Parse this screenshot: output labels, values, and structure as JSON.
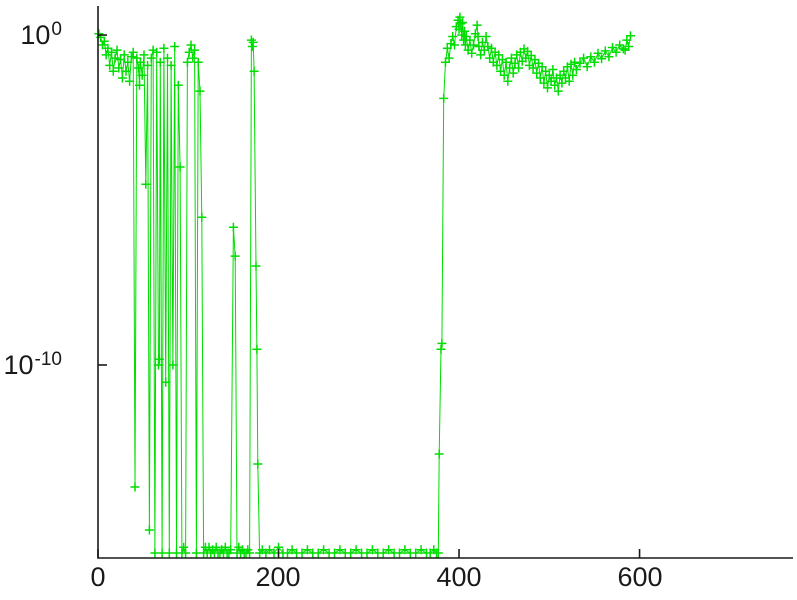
{
  "figure": {
    "background": "#ffffff",
    "axis_color": "#1a1a1a",
    "series_color": "#00dd00"
  },
  "chart_data": {
    "type": "line",
    "marker": "+",
    "title": "",
    "xlabel": "",
    "ylabel": "",
    "yscale": "log",
    "grid": false,
    "legend": null,
    "xlim": [
      0,
      770
    ],
    "ylim_exp": [
      -15.85,
      0.88
    ],
    "x_ticks": [
      0,
      200,
      400,
      600
    ],
    "x_tick_labels": [
      "0",
      "200",
      "400",
      "600"
    ],
    "y_ticks": [
      1,
      1e-10
    ],
    "y_tick_base": "10",
    "y_tick_exp_labels": [
      "0",
      "-10"
    ],
    "points": [
      [
        1,
        1.1
      ],
      [
        3,
        0.85
      ],
      [
        5,
        0.5
      ],
      [
        7,
        0.65
      ],
      [
        9,
        0.25
      ],
      [
        11,
        0.4
      ],
      [
        13,
        0.12
      ],
      [
        15,
        0.3
      ],
      [
        17,
        0.08
      ],
      [
        19,
        0.2
      ],
      [
        21,
        0.35
      ],
      [
        23,
        0.1
      ],
      [
        25,
        0.18
      ],
      [
        27,
        0.05
      ],
      [
        29,
        0.25
      ],
      [
        31,
        0.08
      ],
      [
        33,
        0.15
      ],
      [
        35,
        0.04
      ],
      [
        37,
        0.22
      ],
      [
        39,
        0.3
      ],
      [
        41,
        2e-14
      ],
      [
        43,
        0.2
      ],
      [
        45,
        0.1
      ],
      [
        46,
        0.03
      ],
      [
        47,
        0.15
      ],
      [
        49,
        0.06
      ],
      [
        51,
        0.25
      ],
      [
        53,
        3e-05
      ],
      [
        55,
        0.12
      ],
      [
        57,
        1e-15
      ],
      [
        59,
        0.2
      ],
      [
        61,
        0.35
      ],
      [
        63,
        2e-16
      ],
      [
        65,
        0.3
      ],
      [
        67,
        1e-10
      ],
      [
        68,
        1.5e-10
      ],
      [
        69,
        0.15
      ],
      [
        71,
        2e-16
      ],
      [
        73,
        0.4
      ],
      [
        75,
        3e-11
      ],
      [
        77,
        0.2
      ],
      [
        79,
        2e-16
      ],
      [
        81,
        0.12
      ],
      [
        83,
        1e-10
      ],
      [
        85,
        0.45
      ],
      [
        87,
        2e-16
      ],
      [
        89,
        0.03
      ],
      [
        91,
        0.0001
      ],
      [
        93,
        2e-16
      ],
      [
        95,
        3e-16
      ],
      [
        97,
        2e-16
      ],
      [
        99,
        0.15
      ],
      [
        101,
        0.3
      ],
      [
        103,
        0.5
      ],
      [
        105,
        0.2
      ],
      [
        107,
        0.35
      ],
      [
        109,
        2e-16
      ],
      [
        111,
        0.15
      ],
      [
        113,
        0.02
      ],
      [
        115,
        3e-06
      ],
      [
        117,
        2e-16
      ],
      [
        119,
        3e-16
      ],
      [
        121,
        2e-16
      ],
      [
        123,
        3e-16
      ],
      [
        125,
        2e-16
      ],
      [
        127,
        2.5e-16
      ],
      [
        129,
        2e-16
      ],
      [
        131,
        3e-16
      ],
      [
        133,
        2e-16
      ],
      [
        135,
        2e-16
      ],
      [
        137,
        2.5e-16
      ],
      [
        139,
        2e-16
      ],
      [
        141,
        3e-16
      ],
      [
        143,
        2e-16
      ],
      [
        145,
        2e-16
      ],
      [
        147,
        2.5e-16
      ],
      [
        150,
        1.5e-06
      ],
      [
        152,
        2e-07
      ],
      [
        154,
        2e-16
      ],
      [
        156,
        3e-16
      ],
      [
        158,
        2e-16
      ],
      [
        160,
        2.5e-16
      ],
      [
        162,
        2e-16
      ],
      [
        164,
        2e-16
      ],
      [
        166,
        2.5e-16
      ],
      [
        168,
        2e-16
      ],
      [
        170,
        0.7
      ],
      [
        171,
        0.45
      ],
      [
        172,
        0.6
      ],
      [
        173,
        0.08
      ],
      [
        175,
        1e-07
      ],
      [
        176,
        3e-10
      ],
      [
        177,
        1e-13
      ],
      [
        179,
        2e-16
      ],
      [
        182,
        2.5e-16
      ],
      [
        186,
        2e-16
      ],
      [
        190,
        2.5e-16
      ],
      [
        195,
        2e-16
      ],
      [
        200,
        3e-16
      ],
      [
        205,
        2e-16
      ],
      [
        210,
        2e-16
      ],
      [
        215,
        2.5e-16
      ],
      [
        220,
        2e-16
      ],
      [
        226,
        2e-16
      ],
      [
        232,
        2.5e-16
      ],
      [
        238,
        2e-16
      ],
      [
        244,
        2e-16
      ],
      [
        250,
        2.5e-16
      ],
      [
        256,
        2e-16
      ],
      [
        262,
        2e-16
      ],
      [
        268,
        2.5e-16
      ],
      [
        274,
        2e-16
      ],
      [
        280,
        2e-16
      ],
      [
        286,
        2.5e-16
      ],
      [
        292,
        2e-16
      ],
      [
        298,
        2e-16
      ],
      [
        304,
        2.5e-16
      ],
      [
        310,
        2e-16
      ],
      [
        316,
        2e-16
      ],
      [
        322,
        2.5e-16
      ],
      [
        328,
        2e-16
      ],
      [
        334,
        2e-16
      ],
      [
        340,
        2.5e-16
      ],
      [
        346,
        2e-16
      ],
      [
        352,
        2e-16
      ],
      [
        358,
        2.5e-16
      ],
      [
        364,
        2e-16
      ],
      [
        368,
        2e-16
      ],
      [
        372,
        2.5e-16
      ],
      [
        375,
        2e-16
      ],
      [
        377,
        2e-16
      ],
      [
        378,
        2e-13
      ],
      [
        380,
        3e-10
      ],
      [
        381,
        4.5e-10
      ],
      [
        383,
        0.012
      ],
      [
        385,
        0.15
      ],
      [
        387,
        0.4
      ],
      [
        389,
        0.2
      ],
      [
        391,
        0.55
      ],
      [
        393,
        0.9
      ],
      [
        395,
        0.5
      ],
      [
        397,
        1.8
      ],
      [
        399,
        2.8
      ],
      [
        400,
        1.5
      ],
      [
        401,
        3.5
      ],
      [
        402,
        2.2
      ],
      [
        403,
        1.0
      ],
      [
        404,
        2.4
      ],
      [
        405,
        0.7
      ],
      [
        406,
        1.3
      ],
      [
        407,
        0.5
      ],
      [
        408,
        0.9
      ],
      [
        410,
        0.35
      ],
      [
        412,
        0.7
      ],
      [
        414,
        0.28
      ],
      [
        416,
        0.5
      ],
      [
        418,
        1.1
      ],
      [
        420,
        2.0
      ],
      [
        421,
        0.9
      ],
      [
        422,
        0.45
      ],
      [
        424,
        0.25
      ],
      [
        426,
        0.6
      ],
      [
        428,
        0.35
      ],
      [
        430,
        0.9
      ],
      [
        432,
        0.45
      ],
      [
        434,
        0.2
      ],
      [
        436,
        0.4
      ],
      [
        438,
        0.15
      ],
      [
        440,
        0.3
      ],
      [
        442,
        0.12
      ],
      [
        444,
        0.25
      ],
      [
        446,
        0.08
      ],
      [
        448,
        0.18
      ],
      [
        450,
        0.06
      ],
      [
        452,
        0.15
      ],
      [
        454,
        0.04
      ],
      [
        456,
        0.1
      ],
      [
        458,
        0.2
      ],
      [
        460,
        0.07
      ],
      [
        462,
        0.14
      ],
      [
        464,
        0.25
      ],
      [
        466,
        0.1
      ],
      [
        468,
        0.3
      ],
      [
        470,
        0.16
      ],
      [
        472,
        0.38
      ],
      [
        474,
        0.2
      ],
      [
        476,
        0.32
      ],
      [
        478,
        0.12
      ],
      [
        480,
        0.24
      ],
      [
        482,
        0.1
      ],
      [
        484,
        0.18
      ],
      [
        486,
        0.07
      ],
      [
        488,
        0.14
      ],
      [
        490,
        0.05
      ],
      [
        492,
        0.11
      ],
      [
        494,
        0.035
      ],
      [
        496,
        0.08
      ],
      [
        498,
        0.025
      ],
      [
        500,
        0.06
      ],
      [
        502,
        0.04
      ],
      [
        504,
        0.09
      ],
      [
        506,
        0.03
      ],
      [
        508,
        0.05
      ],
      [
        510,
        0.02
      ],
      [
        512,
        0.06
      ],
      [
        514,
        0.035
      ],
      [
        516,
        0.08
      ],
      [
        518,
        0.05
      ],
      [
        520,
        0.11
      ],
      [
        522,
        0.04
      ],
      [
        524,
        0.13
      ],
      [
        526,
        0.06
      ],
      [
        528,
        0.15
      ],
      [
        530,
        0.09
      ],
      [
        534,
        0.14
      ],
      [
        538,
        0.2
      ],
      [
        542,
        0.11
      ],
      [
        546,
        0.22
      ],
      [
        550,
        0.15
      ],
      [
        554,
        0.28
      ],
      [
        558,
        0.19
      ],
      [
        562,
        0.33
      ],
      [
        566,
        0.22
      ],
      [
        570,
        0.42
      ],
      [
        574,
        0.3
      ],
      [
        578,
        0.5
      ],
      [
        582,
        0.38
      ],
      [
        584,
        0.35
      ],
      [
        586,
        0.7
      ],
      [
        588,
        0.45
      ],
      [
        590,
        0.95
      ]
    ]
  }
}
